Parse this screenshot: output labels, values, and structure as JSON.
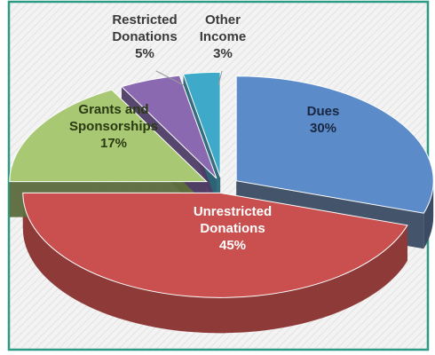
{
  "chart_data": {
    "type": "pie",
    "title": "",
    "slices": [
      {
        "label_lines": [
          "Dues"
        ],
        "pct_label": "30%",
        "value": 30,
        "top": "#5b8bc9",
        "side": "#3a4b63",
        "text": "#1a2740"
      },
      {
        "label_lines": [
          "Unrestricted",
          "Donations"
        ],
        "pct_label": "45%",
        "value": 45,
        "top": "#c9504e",
        "side": "#8e3a39",
        "text": "#ffffff"
      },
      {
        "label_lines": [
          "Grants and",
          "Sponsorships"
        ],
        "pct_label": "17%",
        "value": 17,
        "top": "#a8c873",
        "side": "#5c6b3d",
        "text": "#2a3a13"
      },
      {
        "label_lines": [
          "Restricted",
          "Donations"
        ],
        "pct_label": "5%",
        "value": 5,
        "top": "#8a69b0",
        "side": "#4e3d66",
        "text": "#3a3a3a"
      },
      {
        "label_lines": [
          "Other",
          "Income"
        ],
        "pct_label": "3%",
        "value": 3,
        "top": "#3fa9c9",
        "side": "#2a6677",
        "text": "#3a3a3a"
      }
    ],
    "grid": false,
    "legend": "none"
  },
  "colors": {
    "border": "#2e9a83",
    "background_stripe": "#e4e4e4",
    "label_line": "#9a9a9a"
  }
}
